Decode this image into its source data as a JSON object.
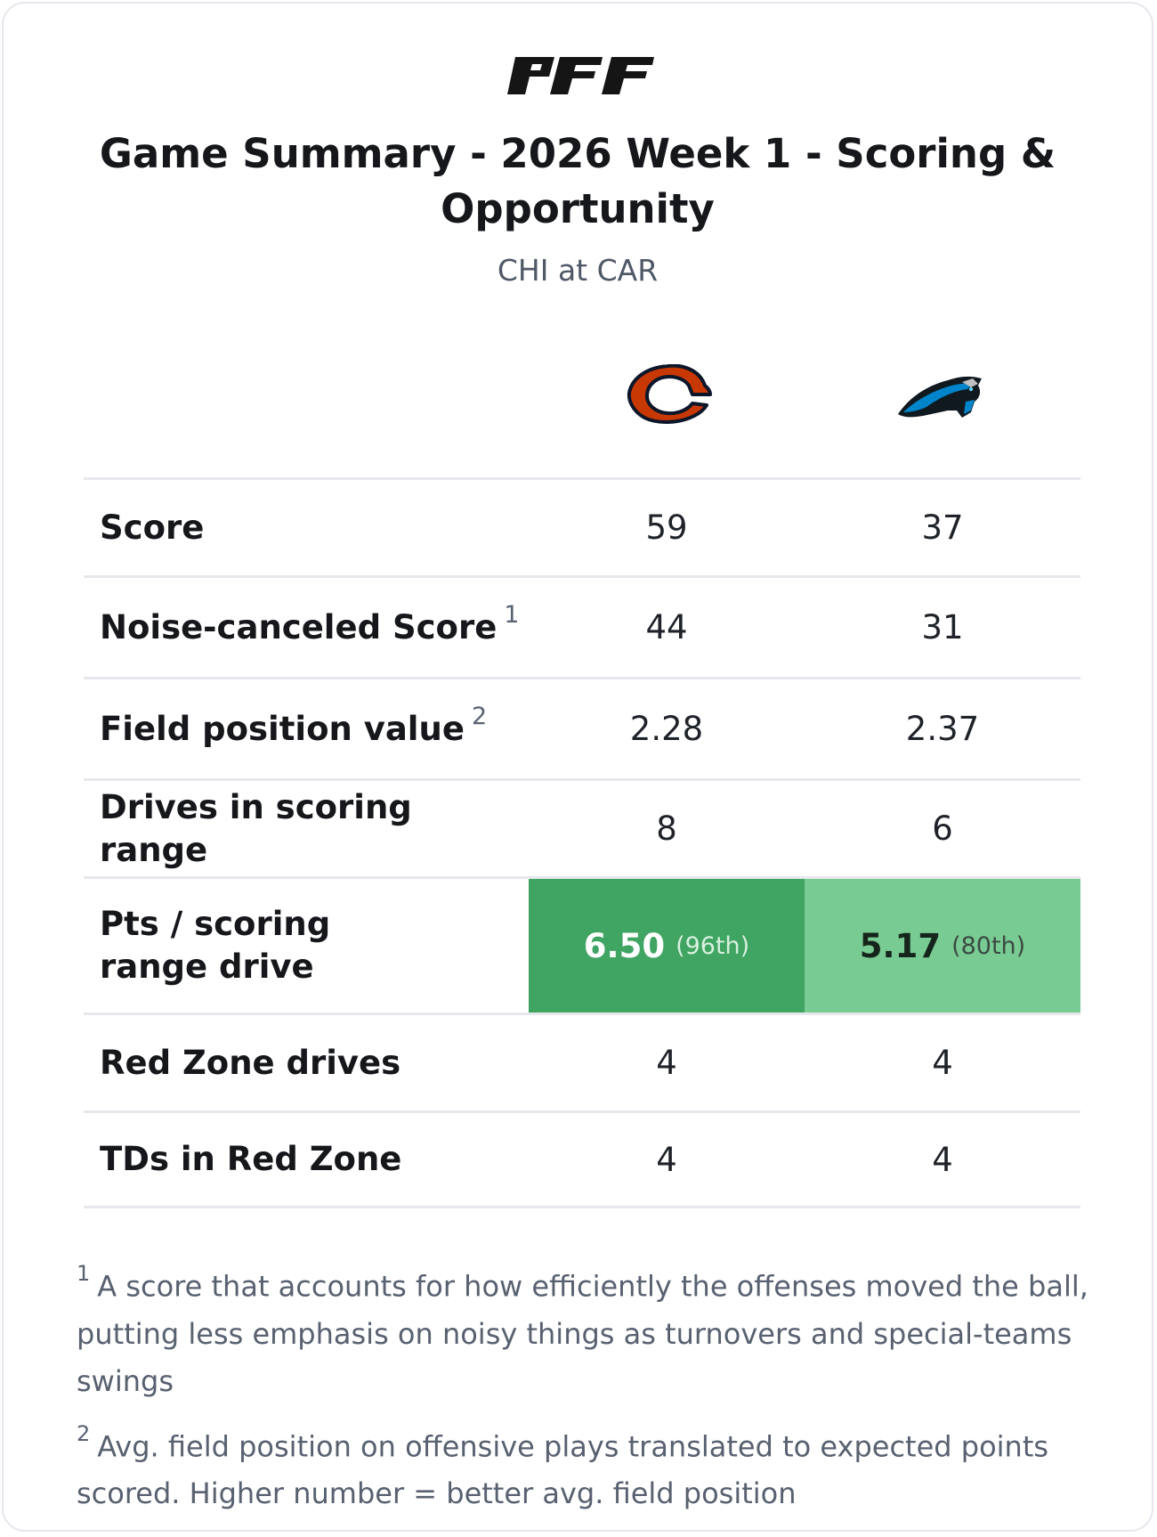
{
  "brand": {
    "logo_text": "PFF"
  },
  "header": {
    "title": "Game Summary - 2026 Week 1 - Scoring & Opportunity",
    "matchup": "CHI at CAR"
  },
  "teams": [
    {
      "abbr": "CHI",
      "logo": "chicago-bears-logo",
      "color": "#c83803"
    },
    {
      "abbr": "CAR",
      "logo": "carolina-panthers-logo",
      "color": "#0085ca"
    }
  ],
  "rows": [
    {
      "label": "Score",
      "footnote": "",
      "away": "59",
      "home": "37"
    },
    {
      "label": "Noise-canceled Score",
      "footnote": "1",
      "away": "44",
      "home": "31"
    },
    {
      "label": "Field position value",
      "footnote": "2",
      "away": "2.28",
      "home": "2.37"
    },
    {
      "label": "Drives in scoring range",
      "footnote": "",
      "away": "8",
      "home": "6"
    },
    {
      "label": "Pts / scoring range drive",
      "footnote": "",
      "away": "6.50",
      "away_pct": "(96th)",
      "home": "5.17",
      "home_pct": "(80th)"
    },
    {
      "label": "Red Zone drives",
      "footnote": "",
      "away": "4",
      "home": "4"
    },
    {
      "label": "TDs in Red Zone",
      "footnote": "",
      "away": "4",
      "home": "4"
    }
  ],
  "highlight_colors": {
    "strong": "#40a462",
    "medium": "#78cb92"
  },
  "notes": [
    {
      "marker": "1",
      "text": "A score that accounts for how efficiently the offenses moved the ball, putting less emphasis on noisy things as turnovers and special-teams swings"
    },
    {
      "marker": "2",
      "text": "Avg. field position on offensive plays translated to expected points scored. Higher number = better avg. field position"
    }
  ]
}
